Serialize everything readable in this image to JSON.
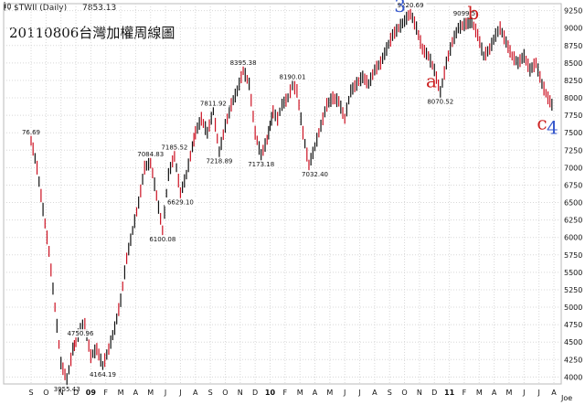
{
  "header": {
    "symbol_text": "$TWII (Daily)",
    "last_value": "7853.13",
    "symbol_icon": "candlestick-icon",
    "watermark": "Joe"
  },
  "chart_data": {
    "type": "line",
    "title": "20110806台灣加權周線圖",
    "ylim": [
      3900,
      9350
    ],
    "yticks": [
      4000,
      4250,
      4500,
      4750,
      5000,
      5250,
      5500,
      5750,
      6000,
      6250,
      6500,
      6750,
      7000,
      7250,
      7500,
      7750,
      8000,
      8250,
      8500,
      8750,
      9000,
      9250
    ],
    "x_months": [
      "S",
      "O",
      "N",
      "D",
      "09",
      "F",
      "M",
      "A",
      "M",
      "J",
      "J",
      "A",
      "S",
      "O",
      "N",
      "D",
      "10",
      "F",
      "M",
      "A",
      "M",
      "J",
      "J",
      "A",
      "S",
      "O",
      "N",
      "D",
      "11",
      "F",
      "M",
      "A",
      "M",
      "J",
      "J",
      "A"
    ],
    "bold_months": [
      "09",
      "10",
      "11"
    ],
    "up_color": "#111111",
    "down_color": "#cc1122",
    "series": [
      {
        "x": [
          0,
          0.4,
          0.8,
          1.2,
          1.6,
          2.0,
          2.4,
          2.8,
          3.0,
          3.3,
          3.6,
          4.0,
          4.4,
          4.8,
          5.2,
          5.6,
          6.0,
          6.4,
          6.8,
          7.2,
          7.6,
          8.0,
          8.4,
          8.8,
          9.2,
          9.6,
          10.0,
          10.4,
          10.8,
          11.0,
          11.4,
          11.8,
          12.2,
          12.6,
          13.0,
          13.4,
          13.8,
          14.2,
          14.6,
          15.0,
          15.4,
          15.8,
          16.0,
          16.2,
          16.5,
          16.8,
          17.2,
          17.5,
          17.8,
          18.2,
          18.6,
          19.0,
          19.4,
          19.8,
          20.2,
          20.6,
          21.0,
          21.4,
          21.8,
          22.2,
          22.6,
          23.0,
          23.4,
          23.8,
          24.2,
          24.6,
          25.0,
          25.4,
          25.8,
          26.2,
          26.6,
          27.0,
          27.4,
          27.8,
          28.2,
          28.6,
          29.0,
          29.5,
          29.9,
          30.3,
          30.7,
          31.1,
          31.4,
          31.8,
          32.2,
          32.6,
          33.0,
          33.4,
          33.8,
          34.2,
          34.6,
          35.0
        ],
        "values": [
          7400,
          7000,
          6400,
          5800,
          5000,
          4200,
          3955,
          4400,
          4500,
          4700,
          4750,
          4300,
          4400,
          4164,
          4400,
          4700,
          5100,
          5700,
          6100,
          6500,
          7000,
          7084,
          6600,
          6100,
          6900,
          7185,
          6629,
          6900,
          7300,
          7500,
          7700,
          7500,
          7812,
          7219,
          7600,
          7900,
          8100,
          8395,
          8200,
          7500,
          7173,
          7400,
          7600,
          7800,
          7700,
          7900,
          8000,
          8190,
          8100,
          7500,
          7032,
          7300,
          7600,
          7900,
          8000,
          7950,
          7700,
          8100,
          8200,
          8300,
          8200,
          8400,
          8500,
          8700,
          8900,
          9000,
          9100,
          9220,
          9000,
          8700,
          8600,
          8400,
          8070,
          8500,
          8800,
          9000,
          9050,
          9099,
          8900,
          8600,
          8700,
          8900,
          9000,
          8800,
          8600,
          8500,
          8600,
          8400,
          8500,
          8200,
          8000,
          7853
        ]
      }
    ],
    "annotations": [
      {
        "x": 0,
        "y": 7400,
        "text": "76.69"
      },
      {
        "x": 3.3,
        "y": 4750,
        "text": "4750.96"
      },
      {
        "x": 2.4,
        "y": 3955,
        "text": "3955.43"
      },
      {
        "x": 4.8,
        "y": 4164,
        "text": "4164.19"
      },
      {
        "x": 8.0,
        "y": 7084,
        "text": "7084.83"
      },
      {
        "x": 8.8,
        "y": 6100,
        "text": "6100.08"
      },
      {
        "x": 9.6,
        "y": 7185,
        "text": "7185.52"
      },
      {
        "x": 10.0,
        "y": 6629,
        "text": "6629.10"
      },
      {
        "x": 12.2,
        "y": 7812,
        "text": "7811.92"
      },
      {
        "x": 12.6,
        "y": 7219,
        "text": "7218.89"
      },
      {
        "x": 14.2,
        "y": 8395,
        "text": "8395.38"
      },
      {
        "x": 15.4,
        "y": 7173,
        "text": "7173.18"
      },
      {
        "x": 17.5,
        "y": 8190,
        "text": "8190.01"
      },
      {
        "x": 19.0,
        "y": 7032,
        "text": "7032.40"
      },
      {
        "x": 25.4,
        "y": 9220,
        "text": "9220.69"
      },
      {
        "x": 27.4,
        "y": 8070,
        "text": "8070.52"
      },
      {
        "x": 29.0,
        "y": 9099,
        "text": "9099.5"
      }
    ],
    "wave_labels": [
      {
        "x": 24.7,
        "y": 9230,
        "text": "3",
        "color": "#3355cc"
      },
      {
        "x": 26.8,
        "y": 8150,
        "text": "a",
        "color": "#cc2222"
      },
      {
        "x": 29.6,
        "y": 9130,
        "text": "b",
        "color": "#cc2222"
      },
      {
        "x": 34.2,
        "y": 7550,
        "text": "c",
        "color": "#cc2222"
      },
      {
        "x": 34.9,
        "y": 7480,
        "text": "4",
        "color": "#3355cc"
      }
    ]
  }
}
